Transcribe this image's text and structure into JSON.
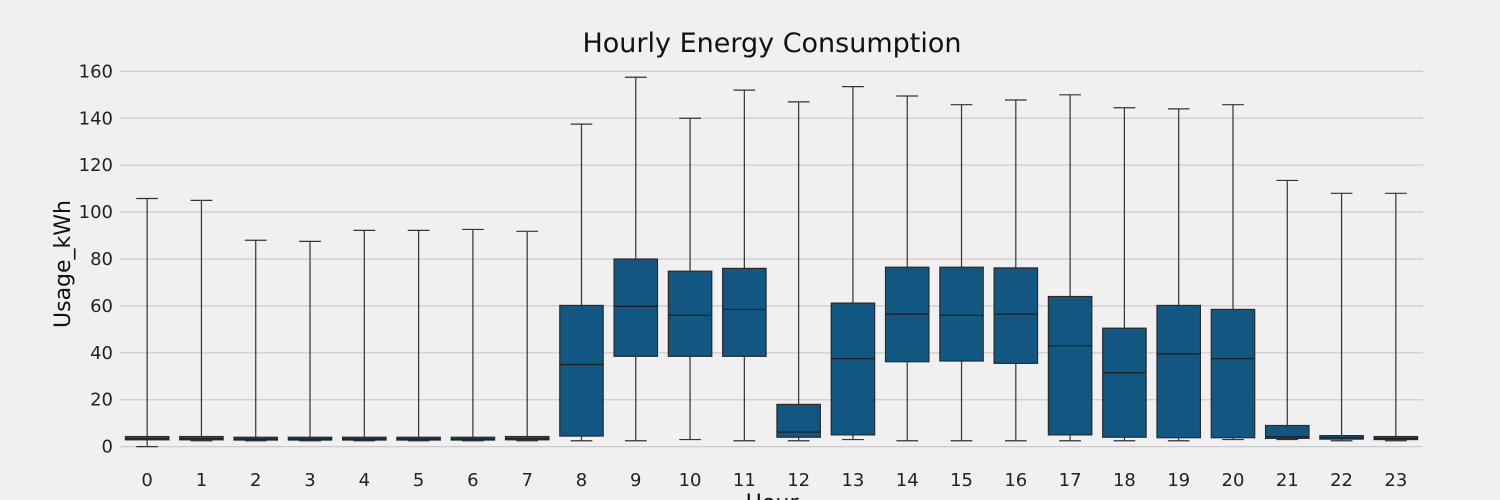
{
  "chart_data": {
    "type": "box",
    "title": "Hourly Energy Consumption",
    "xlabel": "Hour",
    "ylabel": "Usage_kWh",
    "ylim": [
      -4,
      164
    ],
    "yticks": [
      0,
      20,
      40,
      60,
      80,
      100,
      120,
      140,
      160
    ],
    "grid": true,
    "box_color": "#125782",
    "background": "#f0f0f0",
    "categories": [
      "0",
      "1",
      "2",
      "3",
      "4",
      "5",
      "6",
      "7",
      "8",
      "9",
      "10",
      "11",
      "12",
      "13",
      "14",
      "15",
      "16",
      "17",
      "18",
      "19",
      "20",
      "21",
      "22",
      "23"
    ],
    "boxes": [
      {
        "min": 0,
        "q1": 2.9,
        "median": 3.4,
        "q3": 4.3,
        "max": 105.8
      },
      {
        "min": 2.5,
        "q1": 2.9,
        "median": 3.4,
        "q3": 4.3,
        "max": 105
      },
      {
        "min": 2.5,
        "q1": 2.8,
        "median": 3.2,
        "q3": 4.0,
        "max": 88
      },
      {
        "min": 2.5,
        "q1": 2.8,
        "median": 3.2,
        "q3": 4.0,
        "max": 87.5
      },
      {
        "min": 2.5,
        "q1": 2.8,
        "median": 3.2,
        "q3": 4.0,
        "max": 92.2
      },
      {
        "min": 2.5,
        "q1": 2.8,
        "median": 3.2,
        "q3": 4.0,
        "max": 92.2
      },
      {
        "min": 2.5,
        "q1": 2.8,
        "median": 3.2,
        "q3": 4.0,
        "max": 92.6
      },
      {
        "min": 2.5,
        "q1": 2.9,
        "median": 3.4,
        "q3": 4.3,
        "max": 91.8
      },
      {
        "min": 2.5,
        "q1": 4.5,
        "median": 35,
        "q3": 60.2,
        "max": 137.5
      },
      {
        "min": 2.5,
        "q1": 38.5,
        "median": 59.8,
        "q3": 80,
        "max": 157.5
      },
      {
        "min": 3,
        "q1": 38.5,
        "median": 56,
        "q3": 74.8,
        "max": 140
      },
      {
        "min": 2.5,
        "q1": 38.5,
        "median": 58.5,
        "q3": 76,
        "max": 152
      },
      {
        "min": 2.5,
        "q1": 4,
        "median": 6.2,
        "q3": 18,
        "max": 147
      },
      {
        "min": 3,
        "q1": 5,
        "median": 37.5,
        "q3": 61.2,
        "max": 153.5
      },
      {
        "min": 2.5,
        "q1": 36.2,
        "median": 56.5,
        "q3": 76.5,
        "max": 149.5
      },
      {
        "min": 2.5,
        "q1": 36.5,
        "median": 56,
        "q3": 76.5,
        "max": 145.8
      },
      {
        "min": 2.5,
        "q1": 35.5,
        "median": 56.5,
        "q3": 76.2,
        "max": 147.8
      },
      {
        "min": 2.5,
        "q1": 5,
        "median": 43,
        "q3": 64,
        "max": 150
      },
      {
        "min": 2.5,
        "q1": 4,
        "median": 31.5,
        "q3": 50.5,
        "max": 144.5
      },
      {
        "min": 2.5,
        "q1": 3.8,
        "median": 39.5,
        "q3": 60.2,
        "max": 144
      },
      {
        "min": 3,
        "q1": 3.8,
        "median": 37.5,
        "q3": 58.5,
        "max": 145.8
      },
      {
        "min": 3,
        "q1": 3.5,
        "median": 4.2,
        "q3": 9,
        "max": 113.5
      },
      {
        "min": 2.5,
        "q1": 3.2,
        "median": 3.8,
        "q3": 4.7,
        "max": 108
      },
      {
        "min": 2.5,
        "q1": 3,
        "median": 3.5,
        "q3": 4.3,
        "max": 108
      }
    ]
  }
}
